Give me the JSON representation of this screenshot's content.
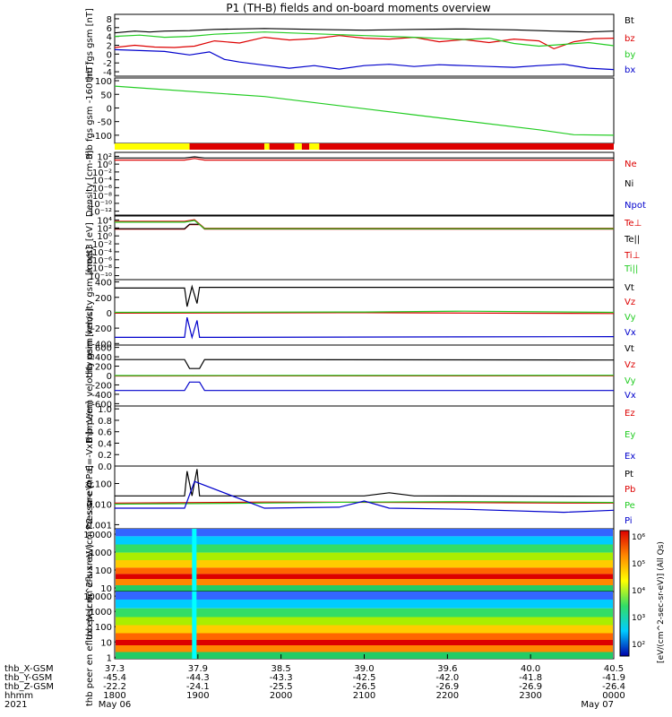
{
  "title": "P1 (TH-B) fields and on-board moments overview",
  "colors": {
    "black": "#000000",
    "red": "#dd0000",
    "green": "#22cc22",
    "blue": "#0000cc",
    "yellow": "#ffff00",
    "cyan": "#00ffff"
  },
  "colorbar": {
    "label": "[eV/(cm^2-sec-sr-eV)] (All Qs)",
    "ticks": [
      "10⁶",
      "10⁵",
      "10⁴",
      "10³",
      "10²"
    ]
  },
  "chart_data": [
    {
      "type": "line",
      "ylabel": "thb fgs gsm [nT]",
      "yticks": [
        "8",
        "6",
        "4",
        "2",
        "0",
        "-2",
        "-4"
      ],
      "ylim": [
        -5,
        9
      ],
      "series": [
        {
          "name": "Bt",
          "color": "#000000",
          "x": [
            0,
            0.04,
            0.07,
            0.1,
            0.15,
            0.2,
            0.3,
            0.4,
            0.5,
            0.6,
            0.7,
            0.8,
            0.88,
            0.95,
            1
          ],
          "y": [
            4.8,
            5.2,
            5.0,
            5.2,
            5.3,
            5.6,
            5.8,
            5.6,
            5.4,
            5.6,
            5.7,
            5.5,
            5.2,
            5.0,
            5.2
          ]
        },
        {
          "name": "bz",
          "color": "#dd0000",
          "x": [
            0,
            0.04,
            0.08,
            0.12,
            0.16,
            0.2,
            0.25,
            0.3,
            0.35,
            0.4,
            0.45,
            0.5,
            0.55,
            0.6,
            0.65,
            0.7,
            0.75,
            0.8,
            0.85,
            0.88,
            0.92,
            0.96,
            1
          ],
          "y": [
            1.5,
            2.0,
            1.6,
            1.5,
            1.8,
            3.0,
            2.5,
            3.8,
            3.2,
            3.5,
            4.2,
            3.6,
            3.4,
            3.8,
            2.8,
            3.3,
            2.6,
            3.4,
            3.0,
            1.2,
            2.8,
            3.5,
            3.6
          ]
        },
        {
          "name": "by",
          "color": "#22cc22",
          "x": [
            0,
            0.05,
            0.1,
            0.15,
            0.2,
            0.3,
            0.4,
            0.5,
            0.6,
            0.7,
            0.75,
            0.8,
            0.85,
            0.9,
            0.95,
            1
          ],
          "y": [
            4.0,
            4.3,
            3.8,
            4.0,
            4.5,
            5.0,
            4.6,
            4.2,
            3.8,
            3.3,
            3.6,
            2.4,
            1.8,
            2.2,
            2.6,
            1.9
          ]
        },
        {
          "name": "bx",
          "color": "#0000cc",
          "x": [
            0,
            0.05,
            0.1,
            0.15,
            0.19,
            0.22,
            0.25,
            0.3,
            0.35,
            0.4,
            0.45,
            0.5,
            0.55,
            0.6,
            0.65,
            0.7,
            0.75,
            0.8,
            0.85,
            0.9,
            0.95,
            1
          ],
          "y": [
            1.0,
            0.8,
            0.6,
            -0.2,
            0.5,
            -1.2,
            -1.8,
            -2.5,
            -3.2,
            -2.6,
            -3.4,
            -2.6,
            -2.3,
            -2.8,
            -2.4,
            -2.6,
            -2.8,
            -3.0,
            -2.6,
            -2.3,
            -3.2,
            -3.5
          ]
        }
      ]
    },
    {
      "type": "line",
      "ylabel": "thb fgs gsm -160 [nT]",
      "yticks": [
        "100",
        "50",
        "0",
        "-50",
        "-100"
      ],
      "ylim": [
        -130,
        110
      ],
      "series": [
        {
          "name": "",
          "color": "#22cc22",
          "x": [
            0,
            0.3,
            0.6,
            0.85,
            0.92,
            1
          ],
          "y": [
            80,
            42,
            -25,
            -80,
            -98,
            -100
          ]
        }
      ]
    },
    {
      "type": "bar",
      "segments": [
        {
          "from": 0,
          "to": 0.15,
          "color": "#ffff00"
        },
        {
          "from": 0.15,
          "to": 0.3,
          "color": "#dd0000"
        },
        {
          "from": 0.3,
          "to": 0.31,
          "color": "#ffff00"
        },
        {
          "from": 0.31,
          "to": 0.36,
          "color": "#dd0000"
        },
        {
          "from": 0.36,
          "to": 0.375,
          "color": "#ffff00"
        },
        {
          "from": 0.375,
          "to": 0.39,
          "color": "#dd0000"
        },
        {
          "from": 0.39,
          "to": 0.41,
          "color": "#ffff00"
        },
        {
          "from": 0.41,
          "to": 1,
          "color": "#dd0000"
        }
      ]
    },
    {
      "type": "line",
      "ylabel": "Density [cm-3]",
      "yticks": [
        "10²",
        "10⁰",
        "10⁻²",
        "10⁻⁴",
        "10⁻⁶",
        "10⁻⁸",
        "10⁻¹⁰",
        "10⁻¹²"
      ],
      "ylim": [
        -13,
        2.5
      ],
      "series": [
        {
          "name": "Ne",
          "color": "#dd0000",
          "x": [
            0,
            0.14,
            0.16,
            0.18,
            1
          ],
          "y": [
            0.6,
            0.6,
            1.0,
            0.6,
            0.6
          ]
        },
        {
          "name": "Ni",
          "color": "#000000",
          "x": [
            0,
            0.14,
            0.16,
            0.18,
            1
          ],
          "y": [
            1.1,
            1.1,
            1.4,
            1.1,
            1.1
          ]
        },
        {
          "name": "Npot",
          "color": "#0000cc",
          "x": [],
          "y": []
        }
      ]
    },
    {
      "type": "line",
      "ylabel": "moqt3 [eV]",
      "yticks": [
        "10⁴",
        "10²",
        "10⁰",
        "10⁻²",
        "10⁻⁴",
        "10⁻⁶",
        "10⁻⁸",
        "10⁻¹⁰"
      ],
      "ylim": [
        -11,
        4.5
      ],
      "series": [
        {
          "name": "Te⊥",
          "color": "#dd0000",
          "x": [
            0,
            0.14,
            0.15,
            0.17,
            0.18,
            1
          ],
          "y": [
            1.3,
            1.3,
            2.4,
            2.4,
            1.3,
            1.3
          ]
        },
        {
          "name": "Te||",
          "color": "#000000",
          "x": [
            0,
            0.14,
            0.15,
            0.17,
            0.18,
            1
          ],
          "y": [
            1.4,
            1.4,
            2.5,
            2.5,
            1.4,
            1.4
          ]
        },
        {
          "name": "Ti⊥",
          "color": "#dd0000",
          "x": [
            0,
            0.14,
            0.16,
            0.18,
            1
          ],
          "y": [
            3.2,
            3.2,
            3.6,
            1.5,
            1.5
          ]
        },
        {
          "name": "Ti||",
          "color": "#22cc22",
          "x": [
            0,
            0.14,
            0.16,
            0.18,
            1
          ],
          "y": [
            3.0,
            3.0,
            3.4,
            1.4,
            1.4
          ]
        }
      ]
    },
    {
      "type": "line",
      "ylabel": "thb peim velocity gsm [km/s]",
      "yticks": [
        "400",
        "200",
        "0",
        "-200",
        "-400"
      ],
      "ylim": [
        -420,
        430
      ],
      "series": [
        {
          "name": "Vt",
          "color": "#000000",
          "x": [
            0,
            0.14,
            0.145,
            0.155,
            0.165,
            0.17,
            1
          ],
          "y": [
            320,
            320,
            80,
            340,
            120,
            330,
            330
          ]
        },
        {
          "name": "Vz",
          "color": "#dd0000",
          "x": [
            0,
            0.5,
            1
          ],
          "y": [
            -5,
            0,
            -10
          ]
        },
        {
          "name": "Vy",
          "color": "#22cc22",
          "x": [
            0,
            0.5,
            0.7,
            1
          ],
          "y": [
            5,
            10,
            20,
            5
          ]
        },
        {
          "name": "Vx",
          "color": "#0000cc",
          "x": [
            0,
            0.14,
            0.145,
            0.155,
            0.165,
            0.17,
            1
          ],
          "y": [
            -320,
            -320,
            -60,
            -320,
            -100,
            -320,
            -310
          ]
        }
      ]
    },
    {
      "type": "line",
      "ylabel": "thb peem velocity gsm [km/s]",
      "yticks": [
        "600",
        "400",
        "200",
        "0",
        "-200",
        "-400",
        "-600"
      ],
      "ylim": [
        -650,
        650
      ],
      "series": [
        {
          "name": "Vt",
          "color": "#000000",
          "x": [
            0,
            0.14,
            0.15,
            0.17,
            0.18,
            1
          ],
          "y": [
            340,
            340,
            150,
            150,
            340,
            330
          ]
        },
        {
          "name": "Vz",
          "color": "#dd0000",
          "x": [
            0,
            1
          ],
          "y": [
            -10,
            -5
          ]
        },
        {
          "name": "Vy",
          "color": "#22cc22",
          "x": [
            0,
            1
          ],
          "y": [
            0,
            5
          ]
        },
        {
          "name": "Vx",
          "color": "#0000cc",
          "x": [
            0,
            0.14,
            0.15,
            0.17,
            0.18,
            1
          ],
          "y": [
            -320,
            -320,
            -140,
            -140,
            -320,
            -320
          ]
        }
      ]
    },
    {
      "type": "line",
      "ylabel": "E=-VxB [mV/m]",
      "yticks": [
        "1.0",
        "0.8",
        "0.6",
        "0.4",
        "0.2",
        "0.0"
      ],
      "ylim": [
        0,
        1.05
      ],
      "series": [
        {
          "name": "Ez",
          "color": "#dd0000",
          "x": [],
          "y": []
        },
        {
          "name": "Ey",
          "color": "#22cc22",
          "x": [],
          "y": []
        },
        {
          "name": "Ex",
          "color": "#0000cc",
          "x": [],
          "y": []
        }
      ]
    },
    {
      "type": "line",
      "ylabel": "Pressure [nPa]",
      "yticks": [
        "0.100",
        "0.010",
        "0.001"
      ],
      "ytick_logs": [
        -1,
        -2,
        -3
      ],
      "ylim": [
        -3.2,
        -0.15
      ],
      "series": [
        {
          "name": "Pt",
          "color": "#000000",
          "x": [
            0,
            0.14,
            0.145,
            0.155,
            0.165,
            0.17,
            0.5,
            0.55,
            0.6,
            1
          ],
          "y": [
            -1.6,
            -1.6,
            -0.4,
            -1.6,
            -0.3,
            -1.6,
            -1.6,
            -1.45,
            -1.6,
            -1.62
          ]
        },
        {
          "name": "Pb",
          "color": "#dd0000",
          "x": [
            0,
            0.3,
            0.6,
            0.9,
            1
          ],
          "y": [
            -1.95,
            -1.9,
            -1.92,
            -1.95,
            -1.95
          ]
        },
        {
          "name": "Pe",
          "color": "#22cc22",
          "x": [
            0,
            0.3,
            0.5,
            0.7,
            1
          ],
          "y": [
            -2.0,
            -1.95,
            -1.9,
            -1.88,
            -1.92
          ]
        },
        {
          "name": "Pi",
          "color": "#0000cc",
          "x": [
            0,
            0.14,
            0.16,
            0.3,
            0.45,
            0.5,
            0.55,
            0.7,
            0.9,
            1
          ],
          "y": [
            -2.2,
            -2.2,
            -0.9,
            -2.2,
            -2.15,
            -1.85,
            -2.2,
            -2.25,
            -2.4,
            -2.3
          ]
        }
      ]
    },
    {
      "type": "heatmap",
      "ylabel": "thb peir en eflux eV (cm^2-s-sr-eV)",
      "yticks": [
        "10000",
        "1000",
        "100",
        "10"
      ],
      "ytick_logs": [
        4,
        3,
        2,
        1
      ],
      "ylim": [
        0.8,
        4.3
      ]
    },
    {
      "type": "heatmap",
      "ylabel": "thb peer en eflux eV (cm^2-s-sr-eV)",
      "yticks": [
        "10000",
        "1000",
        "100",
        "10",
        "1"
      ],
      "ytick_logs": [
        4,
        3,
        2,
        1,
        0
      ],
      "ylim": [
        -0.1,
        4.3
      ]
    }
  ],
  "xaxis": {
    "row_labels": [
      "thb_X-GSM",
      "thb_Y-GSM",
      "thb_Z-GSM",
      "hhmm",
      "2021"
    ],
    "ticks": [
      {
        "x": 0,
        "values": [
          "37.3",
          "-45.4",
          "-22.2",
          "1800",
          "May 06"
        ]
      },
      {
        "x": 0.1667,
        "values": [
          "37.9",
          "-44.3",
          "-24.1",
          "1900",
          ""
        ]
      },
      {
        "x": 0.3333,
        "values": [
          "38.5",
          "-43.3",
          "-25.5",
          "2000",
          ""
        ]
      },
      {
        "x": 0.5,
        "values": [
          "39.0",
          "-42.5",
          "-26.5",
          "2100",
          ""
        ]
      },
      {
        "x": 0.6667,
        "values": [
          "39.6",
          "-42.0",
          "-26.9",
          "2200",
          ""
        ]
      },
      {
        "x": 0.8333,
        "values": [
          "40.0",
          "-41.8",
          "-26.9",
          "2300",
          ""
        ]
      },
      {
        "x": 1,
        "values": [
          "40.5",
          "-41.9",
          "-26.4",
          "0000",
          "May 07"
        ]
      }
    ]
  }
}
